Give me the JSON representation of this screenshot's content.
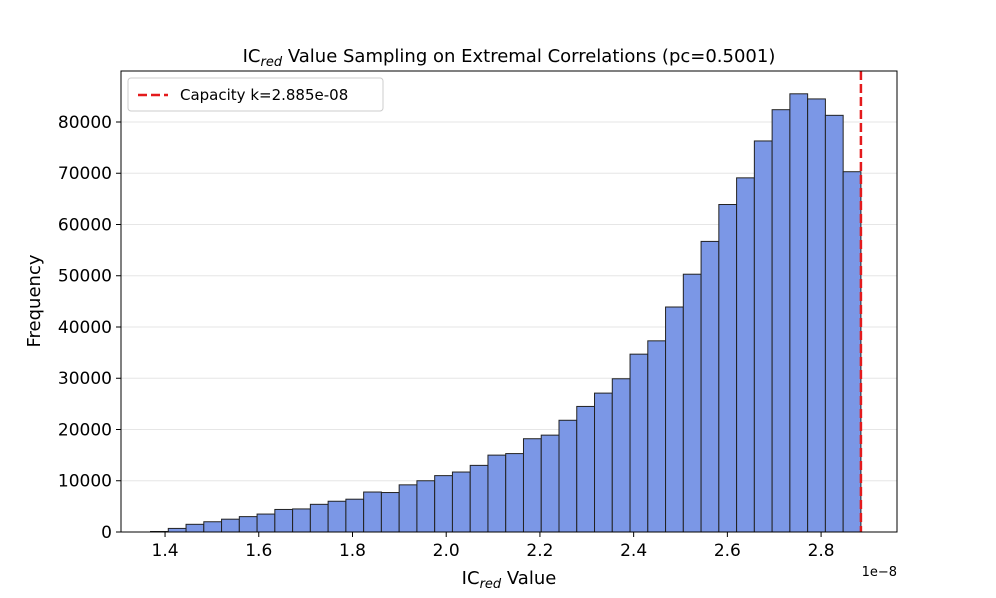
{
  "chart_data": {
    "type": "histogram",
    "title": {
      "main": "IC",
      "subscript": "red",
      "rest": " Value Sampling on Extremal Correlations (pc=0.5001)"
    },
    "xlabel": {
      "main": "IC",
      "subscript": "red",
      "rest": " Value"
    },
    "ylabel": "Frequency",
    "x_offset_label": "1e−8",
    "bins": [
      1.369,
      1.4069,
      1.4448,
      1.4827,
      1.5206,
      1.5585,
      1.5964,
      1.6343,
      1.6722,
      1.7101,
      1.748,
      1.7859,
      1.8238,
      1.8617,
      1.8996,
      1.9375,
      1.9754,
      2.0133,
      2.0512,
      2.0891,
      2.127,
      2.1649,
      2.2028,
      2.2407,
      2.2786,
      2.3165,
      2.3544,
      2.3923,
      2.4302,
      2.4681,
      2.506,
      2.5439,
      2.5818,
      2.6197,
      2.6576,
      2.6955,
      2.7334,
      2.7713,
      2.8092,
      2.8471,
      2.885
    ],
    "values": [
      100,
      700,
      1500,
      2000,
      2500,
      3000,
      3500,
      4400,
      4500,
      5400,
      6000,
      6400,
      7800,
      7700,
      9200,
      10000,
      11000,
      11700,
      13000,
      15000,
      15300,
      18200,
      18900,
      21800,
      24500,
      27100,
      29900,
      34700,
      37300,
      43900,
      50300,
      56700,
      63900,
      69100,
      76300,
      82400,
      85500,
      84500,
      81300,
      70300
    ],
    "color": "#7b97e6",
    "edgecolor": "#222222",
    "xlim": [
      1.306,
      2.962
    ],
    "ylim": [
      0,
      89950
    ],
    "xticks": [
      1.4,
      1.6,
      1.8,
      {
        "value": 2.0,
        "label": "2.0"
      },
      2.2,
      2.4,
      2.6,
      2.8
    ],
    "yticks": [
      0,
      10000,
      20000,
      30000,
      40000,
      50000,
      60000,
      70000,
      80000
    ],
    "grid": "y",
    "vline": {
      "x": 2.885,
      "label": "Capacity k=2.885e-08",
      "color": "#e41a1c"
    },
    "legend": "upper left"
  }
}
